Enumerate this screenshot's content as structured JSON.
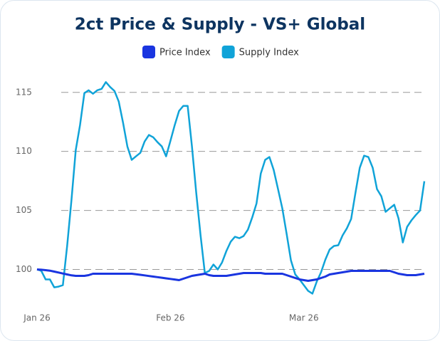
{
  "chart_data": {
    "type": "line",
    "title": "2ct Price & Supply - VS+ Global",
    "categories": [
      "Jan 26",
      null,
      null,
      null,
      null,
      null,
      null,
      null,
      null,
      null,
      null,
      null,
      null,
      null,
      null,
      null,
      null,
      null,
      null,
      null,
      null,
      null,
      null,
      null,
      null,
      null,
      null,
      null,
      null,
      null,
      null,
      "Feb 26",
      null,
      null,
      null,
      null,
      null,
      null,
      null,
      null,
      null,
      null,
      null,
      null,
      null,
      null,
      null,
      null,
      null,
      null,
      null,
      null,
      null,
      null,
      null,
      null,
      null,
      null,
      null,
      null,
      null,
      null,
      "Mar 26",
      null,
      null,
      null,
      null,
      null,
      null,
      null,
      null,
      null,
      null,
      null,
      null,
      null,
      null,
      null,
      null,
      null,
      null,
      null,
      null,
      null,
      null,
      null,
      null,
      null,
      null,
      null,
      null
    ],
    "series": [
      {
        "name": "Price Index",
        "color": "#1a35e0",
        "values": [
          100,
          99.98,
          99.94,
          99.9,
          99.82,
          99.74,
          99.66,
          99.58,
          99.5,
          99.46,
          99.46,
          99.46,
          99.52,
          99.64,
          99.64,
          99.64,
          99.64,
          99.64,
          99.64,
          99.64,
          99.64,
          99.64,
          99.64,
          99.6,
          99.55,
          99.5,
          99.45,
          99.4,
          99.35,
          99.3,
          99.25,
          99.2,
          99.15,
          99.1,
          99.22,
          99.34,
          99.46,
          99.52,
          99.58,
          99.64,
          99.52,
          99.46,
          99.46,
          99.46,
          99.46,
          99.52,
          99.58,
          99.64,
          99.7,
          99.7,
          99.7,
          99.7,
          99.7,
          99.64,
          99.64,
          99.64,
          99.64,
          99.64,
          99.52,
          99.4,
          99.28,
          99.16,
          99.1,
          99.04,
          99.1,
          99.16,
          99.28,
          99.4,
          99.58,
          99.64,
          99.7,
          99.76,
          99.82,
          99.88,
          99.88,
          99.88,
          99.88,
          99.88,
          99.88,
          99.88,
          99.88,
          99.88,
          99.88,
          99.76,
          99.64,
          99.58,
          99.52,
          99.52,
          99.52,
          99.58,
          99.64
        ]
      },
      {
        "name": "Supply Index",
        "color": "#10a3d8",
        "values": [
          100,
          99.88,
          99.16,
          99.16,
          98.49,
          98.55,
          98.67,
          101.99,
          105.9,
          110.12,
          112.23,
          114.94,
          115.18,
          114.88,
          115.18,
          115.3,
          115.87,
          115.45,
          115.12,
          114.22,
          112.41,
          110.42,
          109.28,
          109.58,
          109.88,
          110.84,
          111.39,
          111.2,
          110.78,
          110.42,
          109.58,
          110.9,
          112.23,
          113.43,
          113.86,
          113.86,
          110.42,
          106.51,
          102.89,
          99.7,
          99.88,
          100.42,
          100,
          100.6,
          101.57,
          102.35,
          102.77,
          102.65,
          102.83,
          103.37,
          104.4,
          105.6,
          108.13,
          109.28,
          109.52,
          108.43,
          106.81,
          105.18,
          103.01,
          100.78,
          99.58,
          99.16,
          98.67,
          98.19,
          97.95,
          98.98,
          99.76,
          100.84,
          101.69,
          101.99,
          102.05,
          102.89,
          103.49,
          104.28,
          106.51,
          108.61,
          109.64,
          109.52,
          108.61,
          106.81,
          106.2,
          104.88,
          105.18,
          105.48,
          104.34,
          102.29,
          103.61,
          104.16,
          104.6,
          105,
          107.47
        ]
      }
    ],
    "ylim": [
      97.5,
      118
    ],
    "yticks": [
      100,
      105,
      110,
      115
    ],
    "grid": true
  }
}
